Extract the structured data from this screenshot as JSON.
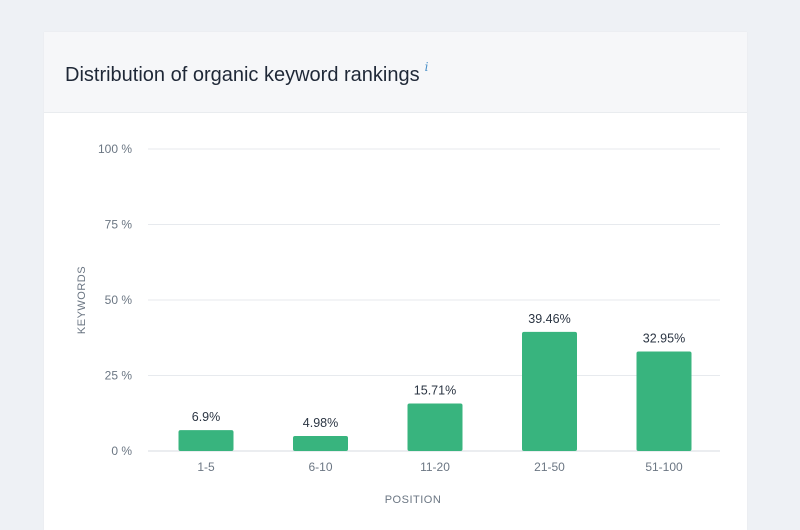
{
  "card": {
    "title": "Distribution of organic keyword rankings",
    "info_icon": "info-icon",
    "info_glyph": "i"
  },
  "colors": {
    "bar": "#38b47e",
    "grid": "#e7eaee",
    "page_background": "#eef1f5"
  },
  "chart_data": {
    "type": "bar",
    "title": "",
    "xlabel": "POSITION",
    "ylabel": "KEYWORDS",
    "categories": [
      "1-5",
      "6-10",
      "11-20",
      "21-50",
      "51-100"
    ],
    "values": [
      6.9,
      4.98,
      15.71,
      39.46,
      32.95
    ],
    "value_labels": [
      "6.9%",
      "4.98%",
      "15.71%",
      "39.46%",
      "32.95%"
    ],
    "ylim": [
      0,
      100
    ],
    "yticks": [
      0,
      25,
      50,
      75,
      100
    ],
    "ytick_labels": [
      "0 %",
      "25 %",
      "50 %",
      "75 %",
      "100 %"
    ],
    "grid": true,
    "legend": "none"
  }
}
